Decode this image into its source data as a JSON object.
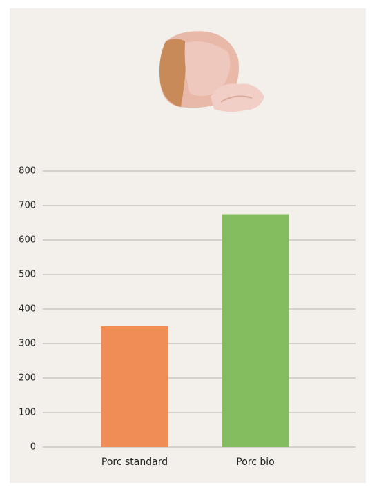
{
  "chart_data": {
    "type": "bar",
    "categories": [
      "Porc standard",
      "Porc bio"
    ],
    "values": [
      350,
      675
    ],
    "colors": [
      "#f08d56",
      "#84bd5f"
    ],
    "ylim": [
      0,
      800
    ],
    "yticks": [
      0,
      100,
      200,
      300,
      400,
      500,
      600,
      700,
      800
    ],
    "grid": true
  }
}
